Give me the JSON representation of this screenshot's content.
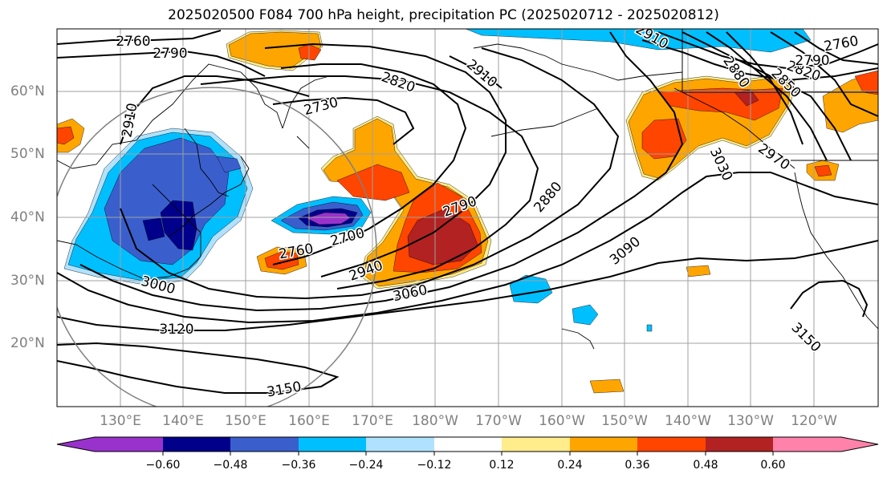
{
  "title": "2025020500 F084 700 hPa height, precipitation PC (2025020712 - 2025020812)",
  "colors": {
    "pc_-0.72": "#9932cc",
    "pc_-0.60": "#00008b",
    "pc_-0.48": "#3a5fcd",
    "pc_-0.36": "#00bfff",
    "pc_-0.24": "#b0e2ff",
    "pc_-0.12": "#ffffff",
    "pc_0.12": "#ffec8b",
    "pc_0.24": "#ffa500",
    "pc_0.36": "#ff4500",
    "pc_0.48": "#b22222",
    "pc_0.60": "#ff82ab",
    "contour": "#000000",
    "grid": "#a0a0a0",
    "tick_label": "#808080"
  },
  "map": {
    "longitude_labels": [
      "130°E",
      "140°E",
      "150°E",
      "160°E",
      "170°E",
      "180°W",
      "170°W",
      "160°W",
      "150°W",
      "140°W",
      "130°W",
      "120°W"
    ],
    "latitude_labels": [
      "60°N",
      "50°N",
      "40°N",
      "30°N",
      "20°N"
    ]
  },
  "contour_labels": [
    {
      "id": "l2760a",
      "text": "2760"
    },
    {
      "id": "l2790a",
      "text": "2790"
    },
    {
      "id": "l2910a",
      "text": "2910"
    },
    {
      "id": "l2820a",
      "text": "2820"
    },
    {
      "id": "l2910b",
      "text": "2910"
    },
    {
      "id": "l2910c",
      "text": "2910"
    },
    {
      "id": "l2730",
      "text": "2730"
    },
    {
      "id": "l2790b",
      "text": "2790"
    },
    {
      "id": "l2880a",
      "text": "2880"
    },
    {
      "id": "l2760b",
      "text": "2760"
    },
    {
      "id": "l2700",
      "text": "2700"
    },
    {
      "id": "l2940",
      "text": "2940"
    },
    {
      "id": "l3060",
      "text": "3060"
    },
    {
      "id": "l3000",
      "text": "3000"
    },
    {
      "id": "l3090",
      "text": "3090"
    },
    {
      "id": "l3120",
      "text": "3120"
    },
    {
      "id": "l3150a",
      "text": "3150"
    },
    {
      "id": "l3150b",
      "text": "3150"
    },
    {
      "id": "l3030",
      "text": "3030"
    },
    {
      "id": "l2880b",
      "text": "2880"
    },
    {
      "id": "l2850",
      "text": "2850"
    },
    {
      "id": "l2820b",
      "text": "2820"
    },
    {
      "id": "l2790c",
      "text": "2790"
    },
    {
      "id": "l2760c",
      "text": "2760"
    },
    {
      "id": "l2970",
      "text": "2970"
    }
  ],
  "colorbar": {
    "tick_labels": [
      "−0.60",
      "−0.48",
      "−0.36",
      "−0.24",
      "−0.12",
      "0.12",
      "0.24",
      "0.36",
      "0.48",
      "0.60"
    ]
  }
}
